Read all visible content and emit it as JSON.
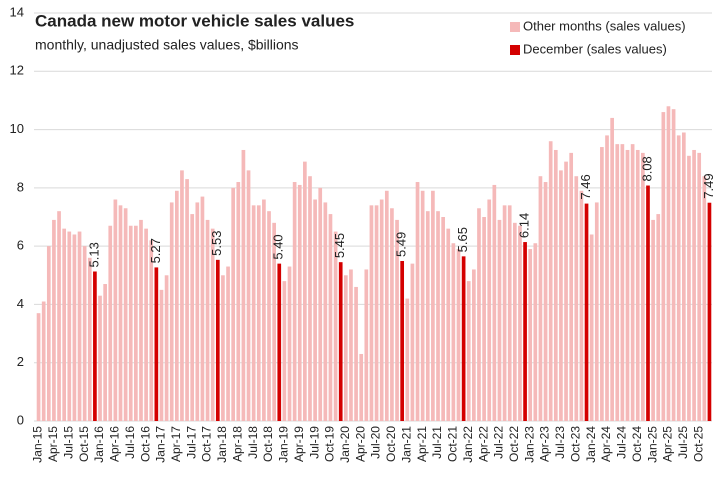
{
  "chart_data": {
    "type": "bar",
    "title": "Canada new motor vehicle sales values",
    "subtitle": "monthly, unadjusted sales values, $billions",
    "categories": [
      "Jan-15",
      null,
      null,
      "Apr-15",
      null,
      null,
      "Jul-15",
      null,
      null,
      "Oct-15",
      null,
      null,
      "Jan-16",
      null,
      null,
      "Apr-16",
      null,
      null,
      "Jul-16",
      null,
      null,
      "Oct-16",
      null,
      null,
      "Jan-17",
      null,
      null,
      "Apr-17",
      null,
      null,
      "Jul-17",
      null,
      null,
      "Oct-17",
      null,
      null,
      "Jan-18",
      null,
      null,
      "Apr-18",
      null,
      null,
      "Jul-18",
      null,
      null,
      "Oct-18",
      null,
      null,
      "Jan-19",
      null,
      null,
      "Apr-19",
      null,
      null,
      "Jul-19",
      null,
      null,
      "Oct-19",
      null,
      null,
      "Jan-20",
      null,
      null,
      "Apr-20",
      null,
      null,
      "Jul-20",
      null,
      null,
      "Oct-20",
      null,
      null,
      "Jan-21",
      null,
      null,
      "Apr-21",
      null,
      null,
      "Jul-21",
      null,
      null,
      "Oct-21",
      null,
      null,
      "Jan-22",
      null,
      null,
      "Apr-22",
      null,
      null,
      "Jul-22",
      null,
      null,
      "Oct-22",
      null,
      null,
      "Jan-23",
      null,
      null,
      "Apr-23",
      null,
      null,
      "Jul-23",
      null,
      null,
      "Oct-23",
      null,
      null,
      "Jan-24",
      null,
      null,
      "Apr-24",
      null,
      null,
      "Jul-24",
      null,
      null,
      "Oct-24",
      null,
      null,
      "Jan-25",
      null,
      null,
      "Apr-25",
      null,
      null,
      "Jul-25",
      null,
      null,
      "Oct-25",
      null,
      null
    ],
    "series": [
      {
        "name": "Other months (sales values)",
        "color": "#f5b9b9",
        "values": [
          3.7,
          4.1,
          6.0,
          6.9,
          7.2,
          6.6,
          6.5,
          6.4,
          6.5,
          6.0,
          5.6,
          null,
          4.3,
          4.7,
          6.7,
          7.6,
          7.4,
          7.3,
          6.7,
          6.7,
          6.9,
          6.6,
          6.2,
          null,
          4.5,
          5.0,
          7.5,
          7.9,
          8.6,
          8.3,
          7.1,
          7.5,
          7.7,
          6.9,
          6.6,
          null,
          5.0,
          5.3,
          8.0,
          8.2,
          9.3,
          8.6,
          7.4,
          7.4,
          7.6,
          7.2,
          6.8,
          null,
          4.8,
          5.3,
          8.2,
          8.1,
          8.9,
          8.4,
          7.6,
          8.0,
          7.5,
          7.1,
          6.5,
          null,
          5.0,
          5.2,
          4.6,
          2.3,
          5.2,
          7.4,
          7.4,
          7.6,
          7.9,
          7.3,
          6.9,
          null,
          4.2,
          5.4,
          8.2,
          7.9,
          7.2,
          7.9,
          7.2,
          7.0,
          6.6,
          6.1,
          5.9,
          null,
          4.8,
          5.2,
          7.3,
          7.0,
          7.6,
          8.1,
          6.9,
          7.4,
          7.4,
          6.8,
          6.7,
          null,
          5.9,
          6.1,
          8.4,
          8.2,
          9.6,
          9.3,
          8.6,
          8.9,
          9.2,
          8.4,
          7.9,
          null,
          6.4,
          7.5,
          9.4,
          9.8,
          10.4,
          9.5,
          9.5,
          9.3,
          9.5,
          9.3,
          9.2,
          null,
          6.9,
          7.1,
          10.6,
          10.8,
          10.7,
          9.8,
          9.9,
          9.1,
          9.3,
          9.2,
          8.4,
          null
        ]
      },
      {
        "name": "December (sales values)",
        "color": "#d40000",
        "values": [
          null,
          null,
          null,
          null,
          null,
          null,
          null,
          null,
          null,
          null,
          null,
          5.13,
          null,
          null,
          null,
          null,
          null,
          null,
          null,
          null,
          null,
          null,
          null,
          5.27,
          null,
          null,
          null,
          null,
          null,
          null,
          null,
          null,
          null,
          null,
          null,
          5.53,
          null,
          null,
          null,
          null,
          null,
          null,
          null,
          null,
          null,
          null,
          null,
          5.4,
          null,
          null,
          null,
          null,
          null,
          null,
          null,
          null,
          null,
          null,
          null,
          5.45,
          null,
          null,
          null,
          null,
          null,
          null,
          null,
          null,
          null,
          null,
          null,
          5.49,
          null,
          null,
          null,
          null,
          null,
          null,
          null,
          null,
          null,
          null,
          null,
          5.65,
          null,
          null,
          null,
          null,
          null,
          null,
          null,
          null,
          null,
          null,
          null,
          6.14,
          null,
          null,
          null,
          null,
          null,
          null,
          null,
          null,
          null,
          null,
          null,
          7.46,
          null,
          null,
          null,
          null,
          null,
          null,
          null,
          null,
          null,
          null,
          null,
          8.08,
          null,
          null,
          null,
          null,
          null,
          null,
          null,
          null,
          null,
          null,
          null,
          7.49
        ],
        "value_labels": [
          null,
          null,
          null,
          null,
          null,
          null,
          null,
          null,
          null,
          null,
          null,
          "5.13",
          null,
          null,
          null,
          null,
          null,
          null,
          null,
          null,
          null,
          null,
          null,
          "5.27",
          null,
          null,
          null,
          null,
          null,
          null,
          null,
          null,
          null,
          null,
          null,
          "5.53",
          null,
          null,
          null,
          null,
          null,
          null,
          null,
          null,
          null,
          null,
          null,
          "5.40",
          null,
          null,
          null,
          null,
          null,
          null,
          null,
          null,
          null,
          null,
          null,
          "5.45",
          null,
          null,
          null,
          null,
          null,
          null,
          null,
          null,
          null,
          null,
          null,
          "5.49",
          null,
          null,
          null,
          null,
          null,
          null,
          null,
          null,
          null,
          null,
          null,
          "5.65",
          null,
          null,
          null,
          null,
          null,
          null,
          null,
          null,
          null,
          null,
          null,
          "6.14",
          null,
          null,
          null,
          null,
          null,
          null,
          null,
          null,
          null,
          null,
          null,
          "7.46",
          null,
          null,
          null,
          null,
          null,
          null,
          null,
          null,
          null,
          null,
          null,
          "8.08",
          null,
          null,
          null,
          null,
          null,
          null,
          null,
          null,
          null,
          null,
          null,
          "7.49"
        ]
      }
    ],
    "ylim": [
      0,
      14
    ],
    "yticks": [
      0,
      2,
      4,
      6,
      8,
      10,
      12,
      14
    ],
    "grid": true,
    "legend": "top-right"
  }
}
